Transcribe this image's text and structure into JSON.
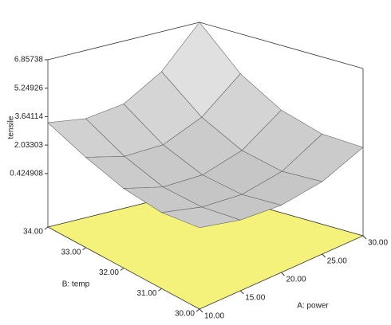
{
  "chart_data": {
    "type": "surface",
    "z_label": "tensile",
    "x_label": "A: power",
    "y_label": "B: temp",
    "x": [
      10,
      15,
      20,
      25,
      30
    ],
    "y": [
      30,
      31,
      32,
      33,
      34
    ],
    "z": [
      [
        2.0,
        1.4,
        1.2,
        1.5,
        2.4
      ],
      [
        1.7,
        1.1,
        0.9,
        1.3,
        2.5
      ],
      [
        1.9,
        1.2,
        1.1,
        1.7,
        3.2
      ],
      [
        2.5,
        1.9,
        1.9,
        2.8,
        4.6
      ],
      [
        3.3,
        3.0,
        3.3,
        4.6,
        6.85738
      ]
    ],
    "xlim": [
      10,
      30
    ],
    "ylim": [
      30,
      34
    ],
    "zlim": [
      -2.6,
      6.85738
    ],
    "xticks": [
      {
        "value": 10,
        "label": "10.00"
      },
      {
        "value": 15,
        "label": "15.00"
      },
      {
        "value": 20,
        "label": "20.00"
      },
      {
        "value": 25,
        "label": "25.00"
      },
      {
        "value": 30,
        "label": "30.00"
      }
    ],
    "yticks": [
      {
        "value": 30,
        "label": "30.00"
      },
      {
        "value": 31,
        "label": "31.00"
      },
      {
        "value": 32,
        "label": "32.00"
      },
      {
        "value": 33,
        "label": "33.00"
      },
      {
        "value": 34,
        "label": "34.00"
      }
    ],
    "zticks": [
      0.424908,
      2.03303,
      3.64114,
      5.24926,
      6.85738
    ],
    "floor_color": "#f4f27a",
    "surface_color": "#d8d8d8"
  }
}
